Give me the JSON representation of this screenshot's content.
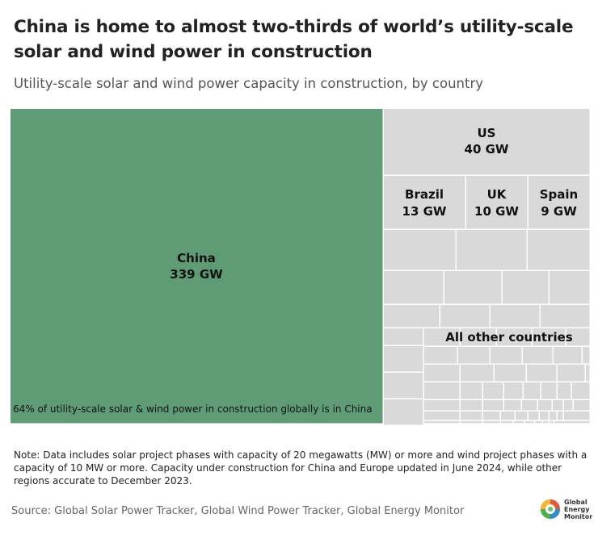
{
  "header": {
    "title": "China is home to almost two-thirds of world’s utility-scale solar and wind power in construction",
    "subtitle": "Utility-scale solar and wind power capacity in construction, by country"
  },
  "chart_data": {
    "type": "treemap",
    "unit": "GW",
    "colors": {
      "china": "#5f9c76",
      "other": "#d9d9d9",
      "border": "#ffffff"
    },
    "nodes": [
      {
        "name": "China",
        "value": 339,
        "value_label": "339 GW"
      },
      {
        "name": "US",
        "value": 40,
        "value_label": "40 GW"
      },
      {
        "name": "Brazil",
        "value": 13,
        "value_label": "13 GW"
      },
      {
        "name": "UK",
        "value": 10,
        "value_label": "10 GW"
      },
      {
        "name": "Spain",
        "value": 9,
        "value_label": "9 GW"
      },
      {
        "name": "All other countries"
      }
    ],
    "annotation": "64% of utility-scale solar & wind power in construction globally is in China"
  },
  "footer": {
    "note": "Note: Data includes solar project phases with capacity of 20 megawatts (MW) or more and wind project phases with a capacity of 10 MW or more. Capacity under construction for China and Europe updated in June 2024, while other regions accurate to December 2023.",
    "source": "Source: Global Solar Power Tracker, Global Wind Power Tracker, Global Energy Monitor",
    "logo_lines": [
      "Global",
      "Energy",
      "Monitor"
    ]
  }
}
